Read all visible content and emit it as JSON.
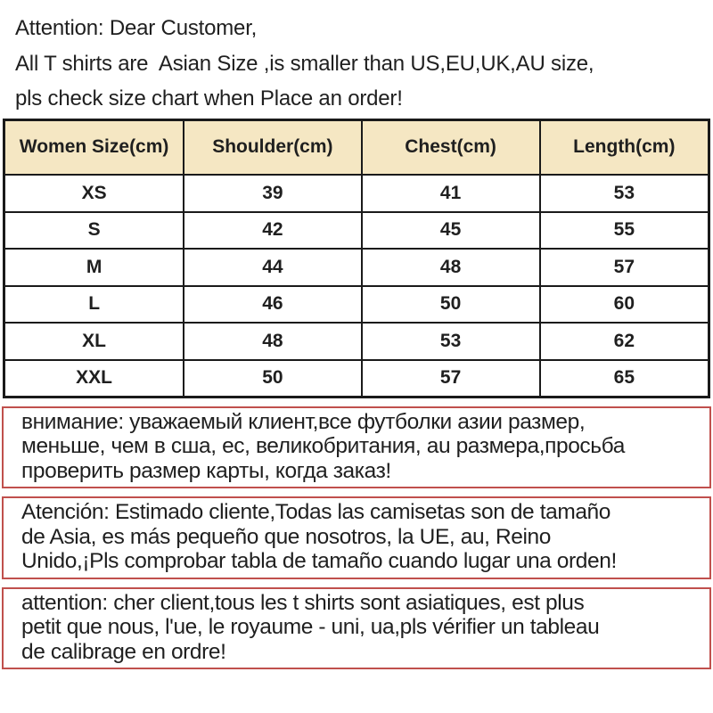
{
  "page": {
    "colors": {
      "background": "#ffffff",
      "text": "#1f1f1f",
      "accent": "#c0504d",
      "header-bg": "#f5e7c3",
      "table-border": "#1a1a1a"
    }
  },
  "attention_note": {
    "lines": [
      "Attention: Dear Customer,",
      "All T shirts are  Asian Size ,is smaller than US,EU,UK,AU size,",
      "pls check size chart when Place an order!"
    ]
  },
  "size_table": {
    "headers": [
      "Women Size(cm)",
      "Shoulder(cm)",
      "Chest(cm)",
      "Length(cm)"
    ],
    "rows": [
      {
        "size": "XS",
        "shoulder": "39",
        "chest": "41",
        "length": "53"
      },
      {
        "size": "S",
        "shoulder": "42",
        "chest": "45",
        "length": "55"
      },
      {
        "size": "M",
        "shoulder": "44",
        "chest": "48",
        "length": "57"
      },
      {
        "size": "L",
        "shoulder": "46",
        "chest": "50",
        "length": "60"
      },
      {
        "size": "XL",
        "shoulder": "48",
        "chest": "53",
        "length": "62"
      },
      {
        "size": "XXL",
        "shoulder": "50",
        "chest": "57",
        "length": "65"
      }
    ]
  },
  "translation_notes": {
    "russian": {
      "lines": [
        "внимание: уважаемый клиент,все футболки азии размер,",
        "меньше, чем в сша, ес, великобритания, au размера,просьба",
        "проверить размер карты, когда заказ!"
      ]
    },
    "spanish": {
      "lines": [
        "Atención: Estimado cliente,Todas las camisetas son de tamaño",
        "de Asia, es más pequeño que nosotros, la UE, au, Reino",
        "Unido,¡Pls comprobar tabla de tamaño cuando lugar una orden!"
      ]
    },
    "french": {
      "lines": [
        "attention: cher client,tous les t shirts sont asiatiques, est plus",
        "petit que nous, l'ue, le royaume - uni, ua,pls vérifier un tableau",
        "de calibrage en ordre!"
      ]
    }
  }
}
